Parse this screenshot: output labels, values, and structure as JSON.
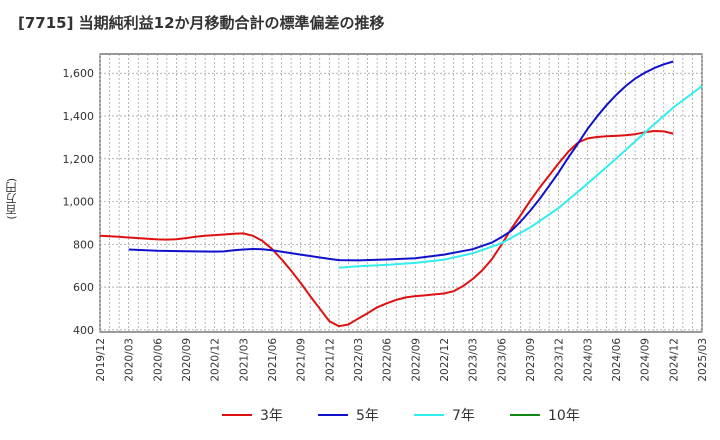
{
  "chart_data": {
    "type": "line",
    "title": "[7715]  当期純利益12か月移動合計の標準偏差の推移",
    "ylabel": "(百万円)",
    "xlabel": "",
    "ylim": [
      390,
      1690
    ],
    "yticks": [
      400,
      600,
      800,
      1000,
      1200,
      1400,
      1600
    ],
    "ytick_labels": [
      "400",
      "600",
      "800",
      "1,000",
      "1,200",
      "1,400",
      "1,600"
    ],
    "x_start": "2019-12",
    "x_end": "2025-03",
    "xtick_labels": [
      "2019/12",
      "2020/03",
      "2020/06",
      "2020/09",
      "2020/12",
      "2021/03",
      "2021/06",
      "2021/09",
      "2021/12",
      "2022/03",
      "2022/06",
      "2022/09",
      "2022/12",
      "2023/03",
      "2023/06",
      "2023/09",
      "2023/12",
      "2024/03",
      "2024/06",
      "2024/09",
      "2024/12",
      "2025/03"
    ],
    "grid": true,
    "legend_position": "bottom",
    "series": [
      {
        "name": "3年",
        "color": "#dd1111",
        "points": [
          [
            "2019-12",
            840
          ],
          [
            "2020-01",
            838
          ],
          [
            "2020-02",
            835
          ],
          [
            "2020-03",
            832
          ],
          [
            "2020-04",
            829
          ],
          [
            "2020-05",
            826
          ],
          [
            "2020-06",
            823
          ],
          [
            "2020-07",
            822
          ],
          [
            "2020-08",
            824
          ],
          [
            "2020-09",
            829
          ],
          [
            "2020-10",
            835
          ],
          [
            "2020-11",
            840
          ],
          [
            "2020-12",
            843
          ],
          [
            "2021-01",
            846
          ],
          [
            "2021-02",
            849
          ],
          [
            "2021-03",
            851
          ],
          [
            "2021-04",
            840
          ],
          [
            "2021-05",
            816
          ],
          [
            "2021-06",
            778
          ],
          [
            "2021-07",
            730
          ],
          [
            "2021-08",
            677
          ],
          [
            "2021-09",
            619
          ],
          [
            "2021-10",
            558
          ],
          [
            "2021-11",
            499
          ],
          [
            "2021-12",
            441
          ],
          [
            "2022-01",
            417
          ],
          [
            "2022-02",
            425
          ],
          [
            "2022-03",
            452
          ],
          [
            "2022-04",
            478
          ],
          [
            "2022-05",
            505
          ],
          [
            "2022-06",
            524
          ],
          [
            "2022-07",
            540
          ],
          [
            "2022-08",
            552
          ],
          [
            "2022-09",
            558
          ],
          [
            "2022-10",
            561
          ],
          [
            "2022-11",
            566
          ],
          [
            "2022-12",
            570
          ],
          [
            "2023-01",
            581
          ],
          [
            "2023-02",
            605
          ],
          [
            "2023-03",
            638
          ],
          [
            "2023-04",
            678
          ],
          [
            "2023-05",
            730
          ],
          [
            "2023-06",
            797
          ],
          [
            "2023-07",
            870
          ],
          [
            "2023-08",
            935
          ],
          [
            "2023-09",
            1002
          ],
          [
            "2023-10",
            1065
          ],
          [
            "2023-11",
            1122
          ],
          [
            "2023-12",
            1180
          ],
          [
            "2024-01",
            1232
          ],
          [
            "2024-02",
            1275
          ],
          [
            "2024-03",
            1295
          ],
          [
            "2024-04",
            1302
          ],
          [
            "2024-05",
            1305
          ],
          [
            "2024-06",
            1307
          ],
          [
            "2024-07",
            1310
          ],
          [
            "2024-08",
            1315
          ],
          [
            "2024-09",
            1324
          ],
          [
            "2024-10",
            1330
          ],
          [
            "2024-11",
            1328
          ],
          [
            "2024-12",
            1318
          ]
        ]
      },
      {
        "name": "5年",
        "color": "#1111cc",
        "points": [
          [
            "2020-03",
            776
          ],
          [
            "2020-06",
            770
          ],
          [
            "2020-09",
            768
          ],
          [
            "2020-12",
            766
          ],
          [
            "2021-01",
            767
          ],
          [
            "2021-02",
            772
          ],
          [
            "2021-03",
            776
          ],
          [
            "2021-04",
            778
          ],
          [
            "2021-05",
            777
          ],
          [
            "2021-06",
            772
          ],
          [
            "2021-09",
            752
          ],
          [
            "2021-12",
            732
          ],
          [
            "2022-01",
            726
          ],
          [
            "2022-03",
            725
          ],
          [
            "2022-06",
            729
          ],
          [
            "2022-09",
            735
          ],
          [
            "2022-12",
            752
          ],
          [
            "2023-03",
            777
          ],
          [
            "2023-05",
            808
          ],
          [
            "2023-06",
            833
          ],
          [
            "2023-07",
            862
          ],
          [
            "2023-08",
            905
          ],
          [
            "2023-09",
            956
          ],
          [
            "2023-10",
            1012
          ],
          [
            "2023-11",
            1073
          ],
          [
            "2023-12",
            1137
          ],
          [
            "2024-01",
            1205
          ],
          [
            "2024-02",
            1270
          ],
          [
            "2024-03",
            1338
          ],
          [
            "2024-04",
            1397
          ],
          [
            "2024-05",
            1450
          ],
          [
            "2024-06",
            1498
          ],
          [
            "2024-07",
            1540
          ],
          [
            "2024-08",
            1575
          ],
          [
            "2024-09",
            1602
          ],
          [
            "2024-10",
            1624
          ],
          [
            "2024-11",
            1642
          ],
          [
            "2024-12",
            1655
          ]
        ]
      },
      {
        "name": "7年",
        "color": "#33eeee",
        "points": [
          [
            "2022-01",
            690
          ],
          [
            "2022-03",
            697
          ],
          [
            "2022-06",
            704
          ],
          [
            "2022-09",
            713
          ],
          [
            "2022-12",
            728
          ],
          [
            "2023-03",
            758
          ],
          [
            "2023-06",
            805
          ],
          [
            "2023-09",
            878
          ],
          [
            "2023-12",
            970
          ],
          [
            "2024-03",
            1083
          ],
          [
            "2024-06",
            1200
          ],
          [
            "2024-09",
            1322
          ],
          [
            "2024-12",
            1440
          ],
          [
            "2025-03",
            1540
          ]
        ]
      },
      {
        "name": "10年",
        "color": "#118811",
        "points": []
      }
    ]
  }
}
